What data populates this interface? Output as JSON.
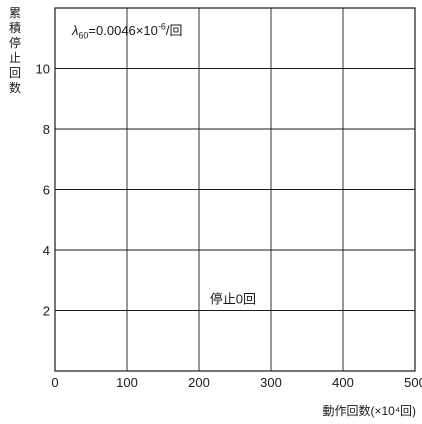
{
  "chart_data": {
    "type": "line",
    "ylabel": "累積停止回数",
    "xlabel": "動作回数(×10⁴回)",
    "formula": {
      "symbol": "λ",
      "subscript": "60",
      "middle": "=0.0046×10",
      "superscript": "-6",
      "end": "/回"
    },
    "xlim": [
      0,
      500
    ],
    "ylim": [
      0,
      12
    ],
    "x_ticks": [
      0,
      100,
      200,
      300,
      400,
      500
    ],
    "x_tick_labels": [
      "0",
      "100",
      "200",
      "300",
      "400",
      "500"
    ],
    "y_ticks": [
      2,
      4,
      6,
      8,
      10
    ],
    "y_tick_labels": [
      "2",
      "4",
      "6",
      "8",
      "10"
    ],
    "grid": true,
    "annotations": [
      {
        "text": "停止0回",
        "x": 215,
        "y": 2.4
      }
    ],
    "series": []
  }
}
